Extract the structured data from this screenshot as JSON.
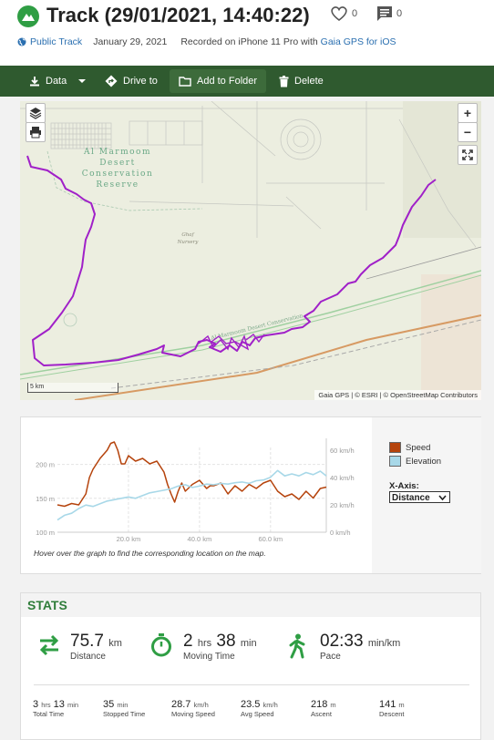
{
  "header": {
    "title": "Track (29/01/2021, 14:40:22)",
    "likes": "0",
    "comments": "0",
    "visibility": "Public Track",
    "date": "January 29, 2021",
    "recorded_prefix": "Recorded on iPhone 11 Pro with",
    "app_link": "Gaia GPS for iOS"
  },
  "toolbar": {
    "data_label": "Data",
    "drive_label": "Drive to",
    "folder_label": "Add to Folder",
    "delete_label": "Delete"
  },
  "map": {
    "place_line1": "Al Marmoom",
    "place_line2": "Desert",
    "place_line3": "Conservation",
    "place_line4": "Reserve",
    "nursery_line1": "Ghaf",
    "nursery_line2": "Nursery",
    "road_label": "Al Marmoom Desert Conservation...",
    "scale_label": "5 km",
    "zoom_in": "+",
    "zoom_out": "−",
    "attribution": "Gaia GPS | © ESRI | © OpenStreetMap Contributors",
    "track_color": "#a020c8"
  },
  "chart_data": {
    "type": "line",
    "x_label_unit": "km",
    "xlim": [
      0,
      75.7
    ],
    "x_ticks": [
      "20.0 km",
      "40.0 km",
      "60.0 km"
    ],
    "x_tick_values": [
      20,
      40,
      60
    ],
    "y_left_ticks": [
      "200 m",
      "150 m",
      "100 m"
    ],
    "y_left_values": [
      200,
      150,
      100
    ],
    "y_left_lim": [
      100,
      225
    ],
    "y_right_ticks": [
      "60 km/h",
      "40 km/h",
      "20 km/h",
      "0 km/h"
    ],
    "y_right_values": [
      60,
      40,
      20,
      0
    ],
    "y_right_lim": [
      0,
      62
    ],
    "series": [
      {
        "name": "Speed",
        "axis": "right",
        "color": "#b5430c",
        "x": [
          0,
          2,
          4,
          6,
          8,
          9,
          10,
          11,
          12,
          14,
          15,
          16,
          17,
          18,
          19,
          20,
          22,
          24,
          26,
          28,
          30,
          31,
          32,
          33,
          34,
          35,
          36,
          38,
          40,
          42,
          43,
          44,
          46,
          48,
          50,
          52,
          54,
          56,
          58,
          60,
          62,
          64,
          66,
          68,
          70,
          72,
          74,
          75.7
        ],
        "y": [
          20,
          19,
          21,
          20,
          28,
          40,
          46,
          50,
          54,
          60,
          65,
          66,
          60,
          50,
          50,
          56,
          52,
          54,
          50,
          52,
          44,
          35,
          28,
          22,
          30,
          36,
          30,
          35,
          38,
          32,
          34,
          34,
          36,
          28,
          34,
          30,
          35,
          32,
          36,
          38,
          30,
          26,
          28,
          24,
          30,
          25,
          32,
          33
        ]
      },
      {
        "name": "Elevation",
        "axis": "left",
        "color": "#a8d8e8",
        "x": [
          0,
          2,
          4,
          6,
          8,
          10,
          12,
          14,
          16,
          18,
          20,
          22,
          24,
          26,
          28,
          30,
          32,
          34,
          36,
          38,
          40,
          42,
          44,
          46,
          48,
          50,
          52,
          54,
          56,
          58,
          60,
          62,
          64,
          66,
          68,
          70,
          72,
          74,
          75.7
        ],
        "y": [
          118,
          125,
          128,
          135,
          140,
          138,
          142,
          146,
          148,
          150,
          152,
          150,
          154,
          158,
          160,
          162,
          164,
          168,
          170,
          166,
          168,
          171,
          170,
          172,
          171,
          173,
          174,
          172,
          176,
          177,
          181,
          191,
          183,
          186,
          183,
          188,
          185,
          190,
          183
        ]
      }
    ],
    "hover_note": "Hover over the graph to find the corresponding location on the map."
  },
  "chart_controls": {
    "legend_speed": "Speed",
    "legend_elevation": "Elevation",
    "xaxis_label": "X-Axis:",
    "xaxis_value": "Distance"
  },
  "stats": {
    "heading": "STATS",
    "distance_value": "75.7",
    "distance_unit": "km",
    "distance_label": "Distance",
    "moving_hrs": "2",
    "moving_hrs_unit": "hrs",
    "moving_min": "38",
    "moving_min_unit": "min",
    "moving_label": "Moving Time",
    "pace_value": "02:33",
    "pace_unit": "min/km",
    "pace_label": "Pace",
    "total_hrs": "3",
    "total_hrs_unit": "hrs",
    "total_min": "13",
    "total_min_unit": "min",
    "total_label": "Total Time",
    "stopped_value": "35",
    "stopped_unit": "min",
    "stopped_label": "Stopped Time",
    "moving_speed_value": "28.7",
    "moving_speed_unit": "km/h",
    "moving_speed_label": "Moving Speed",
    "avg_speed_value": "23.5",
    "avg_speed_unit": "km/h",
    "avg_speed_label": "Avg Speed",
    "ascent_value": "218",
    "ascent_unit": "m",
    "ascent_label": "Ascent",
    "descent_value": "141",
    "descent_unit": "m",
    "descent_label": "Descent",
    "accent_color": "#2f9e44"
  }
}
